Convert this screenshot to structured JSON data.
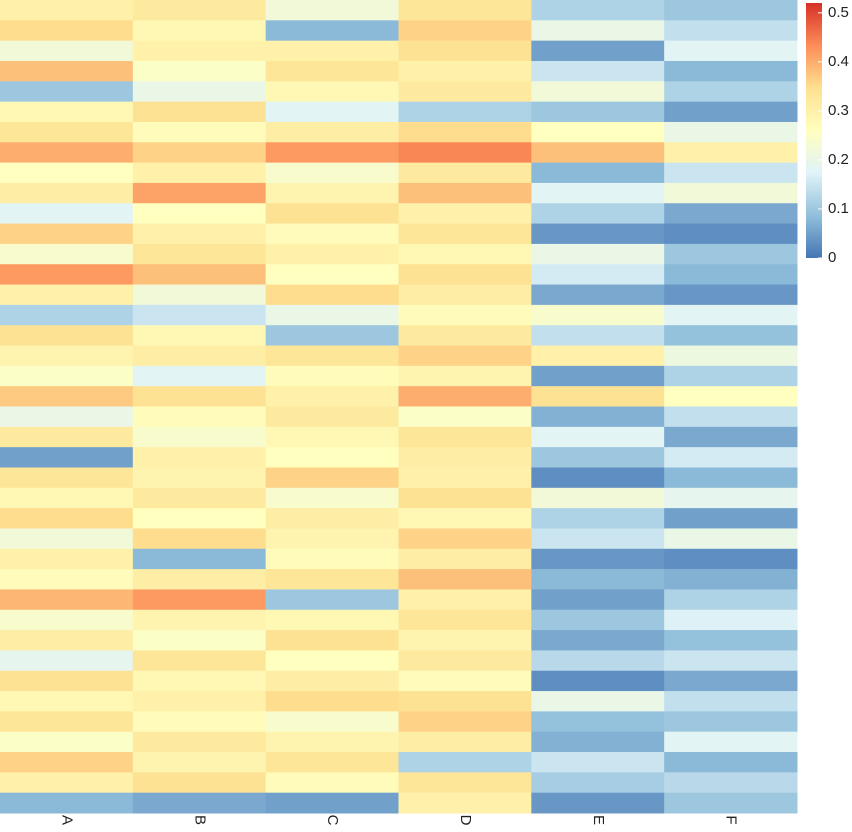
{
  "chart_data": {
    "type": "heatmap",
    "series": [
      {
        "name": "A",
        "values": [
          0.3,
          0.35,
          0.22,
          0.38,
          0.1,
          0.28,
          0.33,
          0.4,
          0.26,
          0.31,
          0.18,
          0.36,
          0.24,
          0.42,
          0.3,
          0.12,
          0.34,
          0.29,
          0.25,
          0.37,
          0.2,
          0.32,
          0.05,
          0.33,
          0.28,
          0.35,
          0.22,
          0.3,
          0.27,
          0.39,
          0.24,
          0.31,
          0.19,
          0.34,
          0.28,
          0.33,
          0.25,
          0.36,
          0.3,
          0.08
        ]
      },
      {
        "name": "B",
        "values": [
          0.32,
          0.28,
          0.3,
          0.25,
          0.2,
          0.34,
          0.27,
          0.36,
          0.3,
          0.41,
          0.26,
          0.3,
          0.33,
          0.38,
          0.22,
          0.15,
          0.28,
          0.31,
          0.18,
          0.34,
          0.27,
          0.24,
          0.3,
          0.29,
          0.32,
          0.26,
          0.35,
          0.08,
          0.31,
          0.42,
          0.29,
          0.25,
          0.33,
          0.28,
          0.3,
          0.27,
          0.32,
          0.29,
          0.34,
          0.06
        ]
      },
      {
        "name": "C",
        "values": [
          0.22,
          0.08,
          0.3,
          0.33,
          0.28,
          0.18,
          0.31,
          0.42,
          0.24,
          0.29,
          0.34,
          0.27,
          0.3,
          0.26,
          0.35,
          0.2,
          0.1,
          0.33,
          0.27,
          0.3,
          0.32,
          0.28,
          0.26,
          0.36,
          0.24,
          0.31,
          0.29,
          0.27,
          0.33,
          0.1,
          0.28,
          0.34,
          0.26,
          0.31,
          0.35,
          0.24,
          0.29,
          0.33,
          0.27,
          0.05
        ]
      },
      {
        "name": "D",
        "values": [
          0.33,
          0.36,
          0.34,
          0.3,
          0.32,
          0.12,
          0.35,
          0.44,
          0.32,
          0.38,
          0.3,
          0.33,
          0.28,
          0.34,
          0.31,
          0.27,
          0.32,
          0.36,
          0.29,
          0.4,
          0.25,
          0.33,
          0.31,
          0.3,
          0.34,
          0.28,
          0.36,
          0.31,
          0.38,
          0.3,
          0.33,
          0.29,
          0.32,
          0.27,
          0.34,
          0.36,
          0.31,
          0.12,
          0.33,
          0.3
        ]
      },
      {
        "name": "E",
        "values": [
          0.12,
          0.2,
          0.05,
          0.15,
          0.22,
          0.1,
          0.26,
          0.38,
          0.08,
          0.18,
          0.12,
          0.04,
          0.2,
          0.16,
          0.06,
          0.24,
          0.14,
          0.3,
          0.05,
          0.34,
          0.07,
          0.18,
          0.1,
          0.03,
          0.22,
          0.12,
          0.15,
          0.04,
          0.08,
          0.05,
          0.1,
          0.06,
          0.13,
          0.03,
          0.2,
          0.09,
          0.07,
          0.15,
          0.11,
          0.04
        ]
      },
      {
        "name": "F",
        "values": [
          0.1,
          0.14,
          0.18,
          0.08,
          0.12,
          0.05,
          0.2,
          0.3,
          0.15,
          0.22,
          0.06,
          0.03,
          0.1,
          0.08,
          0.04,
          0.18,
          0.09,
          0.21,
          0.12,
          0.26,
          0.14,
          0.06,
          0.16,
          0.08,
          0.19,
          0.05,
          0.2,
          0.03,
          0.07,
          0.12,
          0.17,
          0.09,
          0.15,
          0.06,
          0.14,
          0.1,
          0.18,
          0.08,
          0.13,
          0.1
        ]
      }
    ],
    "colors": [
      "#4575b4",
      "#91bfdb",
      "#e0f3f8",
      "#ffffbf",
      "#fee090",
      "#fc8d59",
      "#d73027"
    ],
    "vlim": [
      0,
      0.52
    ],
    "vticks": [
      0,
      0.1,
      0.2,
      0.3,
      0.4,
      0.5
    ]
  }
}
